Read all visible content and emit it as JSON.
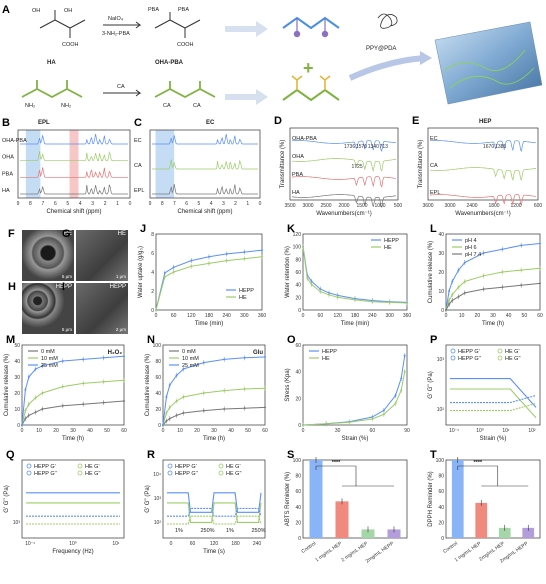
{
  "schemes": {
    "panel_label": "A",
    "row1": {
      "left_mol": "HA",
      "reagent_top": "NaIO₄",
      "reagent_bottom": "3-NH₂-PBA",
      "right_mol": "OHA-PBA",
      "oh": "OH",
      "cooh": "COOH",
      "pba": "PBA"
    },
    "row2": {
      "left_mol": "EPL",
      "reagent": "CA",
      "right_mol": "EC",
      "nh2": "NH₂",
      "ca": "CA"
    },
    "composite": {
      "reagent": "PPY@PDA",
      "product": "HEP"
    }
  },
  "nmr_panels": [
    {
      "id": "B",
      "xlabel": "Chemical shift (ppm)",
      "labels": [
        "OHA-PBA",
        "OHA",
        "PBA",
        "HA"
      ],
      "ticks": [
        "9",
        "8",
        "7",
        "6",
        "5",
        "4",
        "3",
        "2",
        "1",
        "0"
      ]
    },
    {
      "id": "C",
      "xlabel": "Chemical shift (ppm)",
      "labels": [
        "EC",
        "CA",
        "EPL"
      ],
      "ticks": [
        "9",
        "8",
        "7",
        "6",
        "5",
        "4",
        "3",
        "2",
        "1",
        "0"
      ]
    }
  ],
  "ftir_panels": [
    {
      "id": "D",
      "ylabel": "Transmittance (%)",
      "xlabel": "Wavenumbers(cm⁻¹)",
      "labels": [
        "OHA-PBA",
        "OHA",
        "PBA",
        "HA"
      ],
      "peaks": [
        "1736",
        "1570",
        "1340",
        "713",
        "1725"
      ],
      "ticks": [
        "3500",
        "3000",
        "2500",
        "2000",
        "1500",
        "1000",
        "500"
      ]
    },
    {
      "id": "E",
      "ylabel": "Transmittance (%)",
      "xlabel": "Wavenumbers(cm⁻¹)",
      "labels": [
        "EC",
        "CA",
        "EPL"
      ],
      "peaks": [
        "1670",
        "1385"
      ],
      "ticks": [
        "3600",
        "3000",
        "2400",
        "1800",
        "1200",
        "600"
      ]
    }
  ],
  "sem_panels": [
    {
      "id": "F",
      "label": "HE",
      "scale": "5 μm"
    },
    {
      "id": "G",
      "label": "HE",
      "scale": "1 μm"
    },
    {
      "id": "H",
      "label": "HEPP",
      "scale": "5 μm"
    },
    {
      "id": "I",
      "label": "HEPP",
      "scale": "2 μm"
    }
  ],
  "chart_data": [
    {
      "id": "J",
      "type": "line",
      "xlabel": "Time (min)",
      "ylabel": "Water uptake (g/g₀)",
      "xlim": [
        0,
        360
      ],
      "ylim": [
        0,
        8
      ],
      "xticks": [
        0,
        60,
        120,
        180,
        240,
        300,
        360
      ],
      "yticks": [
        0,
        2,
        4,
        6,
        8
      ],
      "legend": "bottom-right",
      "series": [
        {
          "name": "HEPP",
          "color": "#5b8ff9",
          "x": [
            0,
            30,
            60,
            120,
            180,
            240,
            300,
            360
          ],
          "y": [
            0,
            3.9,
            4.5,
            5.2,
            5.6,
            5.9,
            6.1,
            6.3
          ]
        },
        {
          "name": "HE",
          "color": "#9ccc65",
          "x": [
            0,
            30,
            60,
            120,
            180,
            240,
            300,
            360
          ],
          "y": [
            0,
            3.5,
            4.0,
            4.6,
            4.9,
            5.2,
            5.4,
            5.6
          ]
        }
      ]
    },
    {
      "id": "K",
      "type": "line",
      "xlabel": "Time (min)",
      "ylabel": "Water retention (%)",
      "xlim": [
        0,
        360
      ],
      "ylim": [
        0,
        120
      ],
      "xticks": [
        0,
        60,
        120,
        180,
        240,
        300,
        360
      ],
      "yticks": [
        0,
        20,
        40,
        60,
        80,
        100,
        120
      ],
      "legend": "top-right",
      "series": [
        {
          "name": "HEPP",
          "color": "#5b8ff9",
          "x": [
            0,
            15,
            30,
            60,
            90,
            120,
            180,
            240,
            300,
            360
          ],
          "y": [
            100,
            55,
            45,
            33,
            27,
            23,
            18,
            15,
            13,
            12
          ]
        },
        {
          "name": "HE",
          "color": "#9ccc65",
          "x": [
            0,
            15,
            30,
            60,
            90,
            120,
            180,
            240,
            300,
            360
          ],
          "y": [
            100,
            50,
            40,
            29,
            24,
            20,
            16,
            13,
            12,
            11
          ]
        }
      ]
    },
    {
      "id": "L",
      "type": "line",
      "xlabel": "Time (h)",
      "ylabel": "Cumulative release (%)",
      "xlim": [
        0,
        60
      ],
      "ylim": [
        0,
        40
      ],
      "xticks": [
        0,
        10,
        20,
        30,
        40,
        50,
        60
      ],
      "yticks": [
        0,
        10,
        20,
        30,
        40
      ],
      "legend": "top-left",
      "series": [
        {
          "name": "pH 4",
          "color": "#5b8ff9",
          "x": [
            0,
            2,
            4,
            8,
            12,
            24,
            36,
            48,
            60
          ],
          "y": [
            0,
            10,
            15,
            21,
            25,
            30,
            32,
            34,
            35
          ]
        },
        {
          "name": "pH 6",
          "color": "#9ccc65",
          "x": [
            0,
            2,
            4,
            8,
            12,
            24,
            36,
            48,
            60
          ],
          "y": [
            0,
            5,
            8,
            12,
            15,
            18,
            20,
            21,
            22
          ]
        },
        {
          "name": "pH 7.4",
          "color": "#777777",
          "x": [
            0,
            2,
            4,
            8,
            12,
            24,
            36,
            48,
            60
          ],
          "y": [
            0,
            3,
            5,
            7,
            9,
            11,
            12,
            13,
            14
          ]
        }
      ]
    },
    {
      "id": "M",
      "type": "line",
      "title": "H₂O₂",
      "xlabel": "Time (h)",
      "ylabel": "Cumulative release (%)",
      "xlim": [
        0,
        60
      ],
      "ylim": [
        0,
        50
      ],
      "xticks": [
        0,
        10,
        20,
        30,
        40,
        50,
        60
      ],
      "yticks": [
        0,
        10,
        20,
        30,
        40,
        50
      ],
      "legend": "top-left",
      "series": [
        {
          "name": "0 mM",
          "color": "#777777",
          "x": [
            0,
            2,
            4,
            8,
            12,
            24,
            36,
            48,
            60
          ],
          "y": [
            0,
            4,
            6,
            8,
            10,
            12,
            13,
            14,
            15
          ]
        },
        {
          "name": "10 mM",
          "color": "#9ccc65",
          "x": [
            0,
            2,
            4,
            8,
            12,
            24,
            36,
            48,
            60
          ],
          "y": [
            0,
            9,
            13,
            17,
            20,
            24,
            26,
            27,
            28
          ]
        },
        {
          "name": "25 mM",
          "color": "#5b8ff9",
          "x": [
            0,
            2,
            4,
            8,
            12,
            24,
            36,
            48,
            60
          ],
          "y": [
            0,
            22,
            30,
            35,
            37,
            40,
            41,
            42,
            43
          ]
        }
      ]
    },
    {
      "id": "N",
      "type": "line",
      "title": "Glu",
      "xlabel": "Time (h)",
      "ylabel": "Cumulative release (%)",
      "xlim": [
        0,
        60
      ],
      "ylim": [
        0,
        100
      ],
      "xticks": [
        0,
        10,
        20,
        30,
        40,
        50,
        60
      ],
      "yticks": [
        0,
        20,
        40,
        60,
        80,
        100
      ],
      "legend": "top-left",
      "series": [
        {
          "name": "0 mM",
          "color": "#777777",
          "x": [
            0,
            2,
            4,
            8,
            12,
            24,
            36,
            48,
            60
          ],
          "y": [
            0,
            5,
            8,
            12,
            15,
            18,
            20,
            21,
            22
          ]
        },
        {
          "name": "10 mM",
          "color": "#9ccc65",
          "x": [
            0,
            2,
            4,
            8,
            12,
            24,
            36,
            48,
            60
          ],
          "y": [
            0,
            15,
            22,
            30,
            35,
            40,
            43,
            45,
            46
          ]
        },
        {
          "name": "25 mM",
          "color": "#5b8ff9",
          "x": [
            0,
            2,
            4,
            8,
            12,
            24,
            36,
            48,
            60
          ],
          "y": [
            0,
            35,
            50,
            62,
            70,
            78,
            82,
            84,
            85
          ]
        }
      ]
    },
    {
      "id": "O",
      "type": "line",
      "xlabel": "Strain (%)",
      "ylabel": "Stress (Kpa)",
      "xlim": [
        0,
        90
      ],
      "ylim": [
        0,
        60
      ],
      "xticks": [
        0,
        30,
        60,
        90
      ],
      "yticks": [
        0,
        20,
        40,
        60
      ],
      "legend": "top-left",
      "series": [
        {
          "name": "HEPP",
          "color": "#5b8ff9",
          "x": [
            0,
            20,
            40,
            60,
            70,
            80,
            85,
            88
          ],
          "y": [
            0,
            1,
            2.5,
            6,
            11,
            22,
            35,
            52
          ]
        },
        {
          "name": "HE",
          "color": "#9ccc65",
          "x": [
            0,
            20,
            40,
            60,
            70,
            80,
            85,
            88
          ],
          "y": [
            0,
            0.8,
            2,
            4.5,
            8,
            16,
            26,
            40
          ]
        }
      ]
    },
    {
      "id": "P",
      "type": "line",
      "xlabel": "Strain (%)",
      "ylabel": "G' G'' (Pa)",
      "xscale": "log",
      "xlim": [
        0.1,
        100
      ],
      "xticks": [
        "10⁻¹",
        "10⁰",
        "10¹",
        "10²"
      ],
      "yticks": [
        "10²",
        "10³"
      ],
      "legend": "top",
      "series": [
        {
          "name": "HEPP G'",
          "color": "#5b8ff9"
        },
        {
          "name": "HE G'",
          "color": "#9ccc65"
        },
        {
          "name": "HEPP G''",
          "color": "#5b8ff9"
        },
        {
          "name": "HE G''",
          "color": "#9ccc65"
        }
      ]
    },
    {
      "id": "Q",
      "type": "line",
      "xlabel": "Frequency (Hz)",
      "ylabel": "G' G'' (Pa)",
      "xscale": "log",
      "xticks": [
        "10⁻¹",
        "10⁰",
        "10¹"
      ],
      "yticks": [
        "10³"
      ],
      "legend": "top",
      "series": [
        {
          "name": "HEPP G'",
          "color": "#5b8ff9"
        },
        {
          "name": "HE G'",
          "color": "#9ccc65"
        },
        {
          "name": "HEPP G''",
          "color": "#5b8ff9"
        },
        {
          "name": "HE G''",
          "color": "#9ccc65"
        }
      ]
    },
    {
      "id": "R",
      "type": "line",
      "xlabel": "Time (s)",
      "ylabel": "G' G'' (Pa)",
      "xlim": [
        0,
        280
      ],
      "xticks": [
        0,
        60,
        120,
        180,
        240
      ],
      "yticks": [
        "10²",
        "10³",
        "10⁴"
      ],
      "legend": "top",
      "annotations": [
        "1%",
        "250%",
        "1%",
        "250%"
      ],
      "series": [
        {
          "name": "HEPP G'",
          "color": "#5b8ff9"
        },
        {
          "name": "HE G'",
          "color": "#9ccc65"
        },
        {
          "name": "HEPP G''",
          "color": "#5b8ff9"
        },
        {
          "name": "HE G''",
          "color": "#9ccc65"
        }
      ]
    },
    {
      "id": "S",
      "type": "bar",
      "ylabel": "ABTS Reminder (%)",
      "ylim": [
        0,
        100
      ],
      "yticks": [
        0,
        20,
        40,
        60,
        80,
        100
      ],
      "categories": [
        "Control",
        "1 mg/mL HEP",
        "2 mg/mL HEP",
        "2mg/mL HEPP"
      ],
      "values": [
        100,
        47,
        11,
        11
      ],
      "colors": [
        "#8ab4f8",
        "#f08a7e",
        "#a5d6a7",
        "#b39ddb"
      ],
      "significance": "****"
    },
    {
      "id": "T",
      "type": "bar",
      "ylabel": "DPPH Reminder (%)",
      "ylim": [
        0,
        100
      ],
      "yticks": [
        0,
        20,
        40,
        60,
        80,
        100
      ],
      "categories": [
        "Control",
        "1 mg/mL HEP",
        "2mg/mL HEP",
        "2mg/mL HEPP"
      ],
      "values": [
        100,
        45,
        13,
        13
      ],
      "colors": [
        "#8ab4f8",
        "#f08a7e",
        "#a5d6a7",
        "#b39ddb"
      ],
      "significance": "****"
    }
  ]
}
